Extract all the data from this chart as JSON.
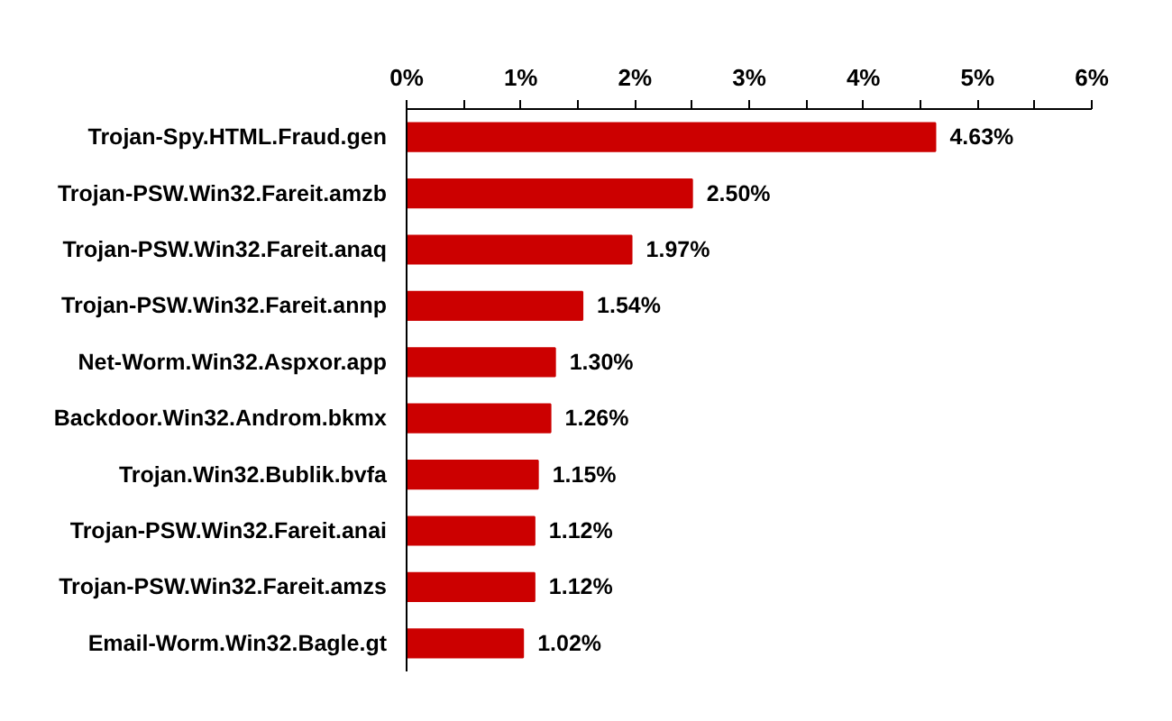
{
  "chart_data": {
    "type": "bar",
    "orientation": "horizontal",
    "categories": [
      "Trojan-Spy.HTML.Fraud.gen",
      "Trojan-PSW.Win32.Fareit.amzb",
      "Trojan-PSW.Win32.Fareit.anaq",
      "Trojan-PSW.Win32.Fareit.annp",
      "Net-Worm.Win32.Aspxor.app",
      "Backdoor.Win32.Androm.bkmx",
      "Trojan.Win32.Bublik.bvfa",
      "Trojan-PSW.Win32.Fareit.anai",
      "Trojan-PSW.Win32.Fareit.amzs",
      "Email-Worm.Win32.Bagle.gt"
    ],
    "values": [
      4.63,
      2.5,
      1.97,
      1.54,
      1.3,
      1.26,
      1.15,
      1.12,
      1.12,
      1.02
    ],
    "value_labels": [
      "4.63%",
      "2.50%",
      "1.97%",
      "1.54%",
      "1.30%",
      "1.26%",
      "1.15%",
      "1.12%",
      "1.12%",
      "1.02%"
    ],
    "color": "#cc0000",
    "xlim": [
      0,
      6
    ],
    "xticks": [
      {
        "value": 0,
        "label": "0%"
      },
      {
        "value": 0.5,
        "label": null
      },
      {
        "value": 1,
        "label": "1%"
      },
      {
        "value": 1.5,
        "label": null
      },
      {
        "value": 2,
        "label": "2%"
      },
      {
        "value": 2.5,
        "label": null
      },
      {
        "value": 3,
        "label": "3%"
      },
      {
        "value": 3.5,
        "label": null
      },
      {
        "value": 4,
        "label": "4%"
      },
      {
        "value": 4.5,
        "label": null
      },
      {
        "value": 5,
        "label": "5%"
      },
      {
        "value": 5.5,
        "label": null
      },
      {
        "value": 6,
        "label": "6%"
      }
    ],
    "grid": false
  }
}
